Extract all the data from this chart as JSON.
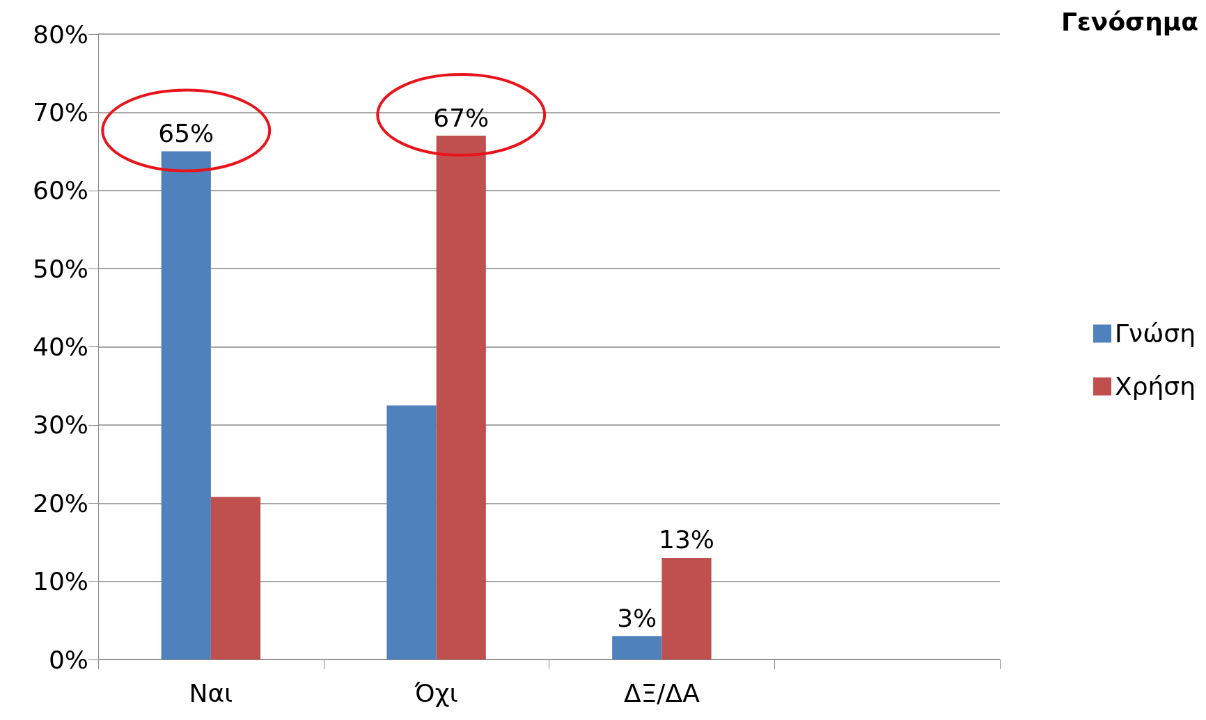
{
  "chart_data": {
    "type": "bar",
    "title": "Γενόσημα",
    "categories": [
      "Ναι",
      "Όχι",
      "ΔΞ/ΔΑ",
      null
    ],
    "series": [
      {
        "name": "Γνώση",
        "color": "#4f81bd",
        "values": [
          65,
          32.5,
          3,
          null
        ],
        "value_labels": [
          "65%",
          null,
          "3%",
          null
        ]
      },
      {
        "name": "Χρήση",
        "color": "#c0504d",
        "values": [
          20.8,
          67,
          13,
          null
        ],
        "value_labels": [
          null,
          "67%",
          "13%",
          null
        ]
      }
    ],
    "ylim": [
      0,
      80
    ],
    "yticks": [
      {
        "value": 0,
        "label": "0%"
      },
      {
        "value": 10,
        "label": "10%"
      },
      {
        "value": 20,
        "label": "20%"
      },
      {
        "value": 30,
        "label": "30%"
      },
      {
        "value": 40,
        "label": "40%"
      },
      {
        "value": 50,
        "label": "50%"
      },
      {
        "value": 60,
        "label": "60%"
      },
      {
        "value": 70,
        "label": "70%"
      },
      {
        "value": 80,
        "label": "80%"
      }
    ],
    "grid": "y",
    "legend": "right"
  }
}
